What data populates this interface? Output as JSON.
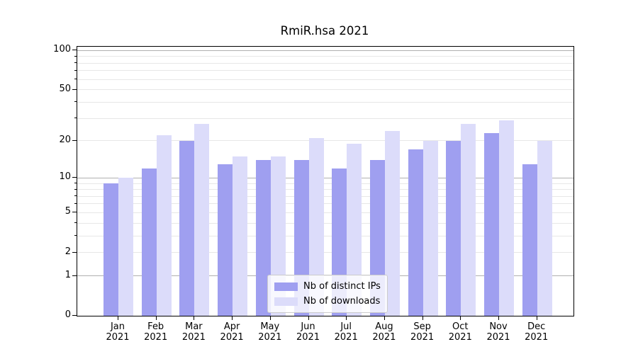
{
  "chart_data": {
    "type": "bar",
    "title": "RmiR.hsa 2021",
    "categories": [
      "Jan 2021",
      "Feb 2021",
      "Mar 2021",
      "Apr 2021",
      "May 2021",
      "Jun 2021",
      "Jul 2021",
      "Aug 2021",
      "Sep 2021",
      "Oct 2021",
      "Nov 2021",
      "Dec 2021"
    ],
    "series": [
      {
        "name": "Nb of distinct IPs",
        "color": "#9f9ff0",
        "values": [
          9,
          12,
          20,
          13,
          14,
          14,
          12,
          14,
          17,
          20,
          23,
          13
        ]
      },
      {
        "name": "Nb of downloads",
        "color": "#dcdcfa",
        "values": [
          10,
          22,
          27,
          15,
          15,
          21,
          19,
          24,
          20,
          27,
          29,
          20
        ]
      }
    ],
    "xlabel": "",
    "ylabel": "",
    "yscale": "log1p",
    "ytick_labels": [
      "0",
      "1",
      "2",
      "5",
      "10",
      "20",
      "50",
      "100"
    ],
    "yticks_labeled": [
      0,
      1,
      2,
      5,
      10,
      20,
      50,
      100
    ],
    "yticks_major_grid": [
      1,
      10,
      100
    ],
    "yticks_minor_grid": [
      2,
      3,
      4,
      5,
      6,
      7,
      8,
      9,
      20,
      30,
      40,
      50,
      60,
      70,
      80,
      90
    ],
    "ylim": [
      0,
      107
    ],
    "grid": true,
    "legend_position": "lower center"
  },
  "colors": {
    "distinct_ips": "#9f9ff0",
    "downloads": "#dcdcfa",
    "grid_major": "#b0b0b0",
    "grid_minor": "#e7e7e7",
    "spine": "#000000",
    "legend_border": "#cccccc"
  }
}
